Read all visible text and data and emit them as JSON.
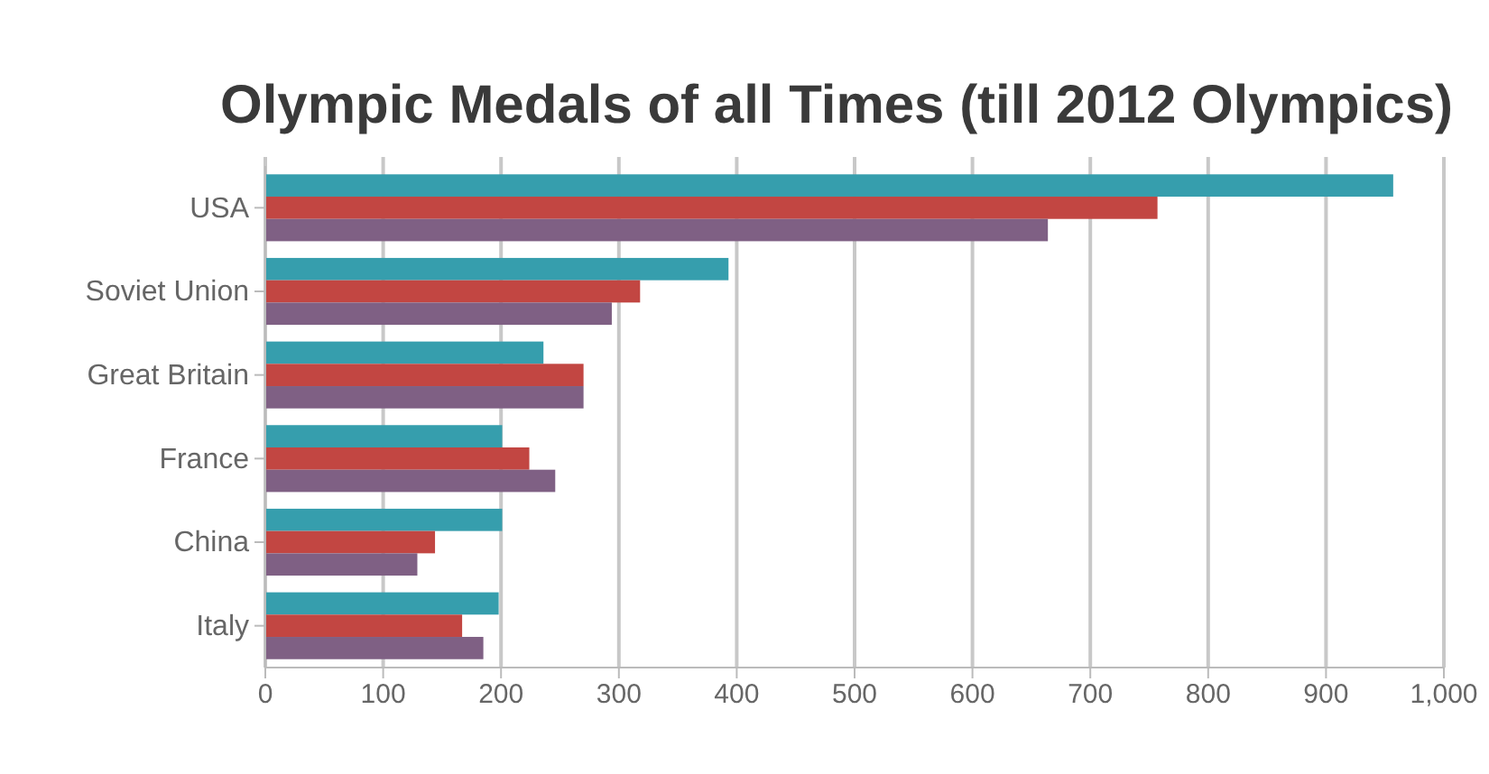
{
  "chart_data": {
    "type": "bar",
    "orientation": "horizontal",
    "title": "Olympic Medals of all Times (till 2012 Olympics)",
    "categories": [
      "USA",
      "Soviet Union",
      "Great Britain",
      "France",
      "China",
      "Italy"
    ],
    "series": [
      {
        "color": "#369ead",
        "values": [
          957,
          393,
          236,
          201,
          201,
          198
        ]
      },
      {
        "color": "#c24642",
        "values": [
          757,
          318,
          270,
          224,
          144,
          167
        ]
      },
      {
        "color": "#7f6084",
        "values": [
          664,
          294,
          270,
          246,
          129,
          185
        ]
      }
    ],
    "xlim": [
      0,
      1000
    ],
    "xticks": [
      0,
      100,
      200,
      300,
      400,
      500,
      600,
      700,
      800,
      900,
      {
        "value": 1000,
        "label": "1,000"
      }
    ],
    "grid": "x"
  }
}
